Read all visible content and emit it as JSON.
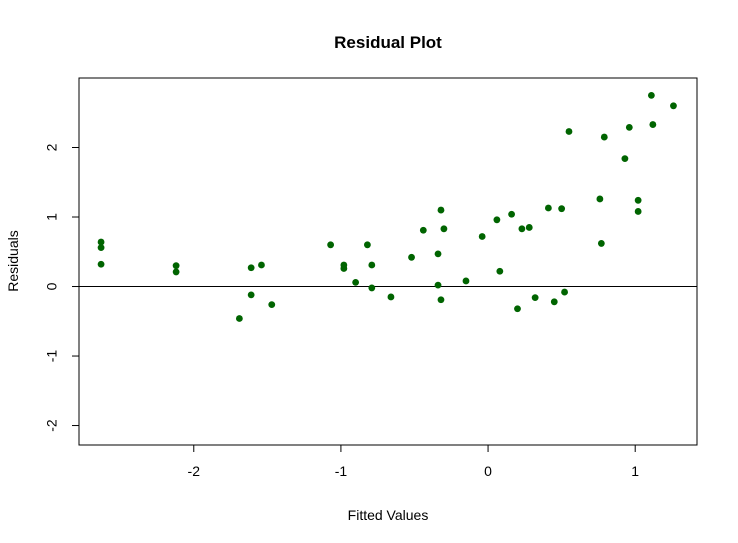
{
  "chart_data": {
    "type": "scatter",
    "title": "Residual Plot",
    "xlabel": "Fitted Values",
    "ylabel": "Residuals",
    "xlim": [
      -2.78,
      1.42
    ],
    "ylim": [
      -2.28,
      3.0
    ],
    "xticks": [
      -2,
      -1,
      0,
      1
    ],
    "yticks": [
      -2,
      -1,
      0,
      1,
      2
    ],
    "xtick_labels": [
      "-2",
      "-1",
      "0",
      "1"
    ],
    "ytick_labels": [
      "-2",
      "-1",
      "0",
      "1",
      "2"
    ],
    "reference_line_y": 0,
    "grid": false,
    "point_color": "#006400",
    "points": [
      {
        "x": -2.63,
        "y": 0.64
      },
      {
        "x": -2.63,
        "y": 0.56
      },
      {
        "x": -2.63,
        "y": 0.32
      },
      {
        "x": -2.12,
        "y": 0.3
      },
      {
        "x": -2.12,
        "y": 0.21
      },
      {
        "x": -1.69,
        "y": -0.46
      },
      {
        "x": -1.61,
        "y": 0.27
      },
      {
        "x": -1.61,
        "y": -0.12
      },
      {
        "x": -1.54,
        "y": 0.31
      },
      {
        "x": -1.47,
        "y": -0.26
      },
      {
        "x": -1.07,
        "y": 0.6
      },
      {
        "x": -0.98,
        "y": 0.31
      },
      {
        "x": -0.98,
        "y": 0.26
      },
      {
        "x": -0.9,
        "y": 0.06
      },
      {
        "x": -0.82,
        "y": 0.6
      },
      {
        "x": -0.79,
        "y": 0.31
      },
      {
        "x": -0.79,
        "y": -0.02
      },
      {
        "x": -0.66,
        "y": -0.15
      },
      {
        "x": -0.52,
        "y": 0.42
      },
      {
        "x": -0.44,
        "y": 0.81
      },
      {
        "x": -0.34,
        "y": 0.47
      },
      {
        "x": -0.34,
        "y": 0.02
      },
      {
        "x": -0.32,
        "y": 1.1
      },
      {
        "x": -0.32,
        "y": -0.19
      },
      {
        "x": -0.3,
        "y": 0.83
      },
      {
        "x": -0.15,
        "y": 0.08
      },
      {
        "x": -0.04,
        "y": 0.72
      },
      {
        "x": 0.06,
        "y": 0.96
      },
      {
        "x": 0.08,
        "y": 0.22
      },
      {
        "x": 0.16,
        "y": 1.04
      },
      {
        "x": 0.2,
        "y": -0.32
      },
      {
        "x": 0.23,
        "y": 0.83
      },
      {
        "x": 0.28,
        "y": 0.85
      },
      {
        "x": 0.32,
        "y": -0.16
      },
      {
        "x": 0.41,
        "y": 1.13
      },
      {
        "x": 0.45,
        "y": -0.22
      },
      {
        "x": 0.5,
        "y": 1.12
      },
      {
        "x": 0.52,
        "y": -0.08
      },
      {
        "x": 0.55,
        "y": 2.23
      },
      {
        "x": 0.76,
        "y": 1.26
      },
      {
        "x": 0.77,
        "y": 0.62
      },
      {
        "x": 0.79,
        "y": 2.15
      },
      {
        "x": 0.93,
        "y": 1.84
      },
      {
        "x": 0.96,
        "y": 2.29
      },
      {
        "x": 1.02,
        "y": 1.24
      },
      {
        "x": 1.02,
        "y": 1.08
      },
      {
        "x": 1.11,
        "y": 2.75
      },
      {
        "x": 1.12,
        "y": 2.33
      },
      {
        "x": 1.26,
        "y": 2.6
      }
    ]
  }
}
